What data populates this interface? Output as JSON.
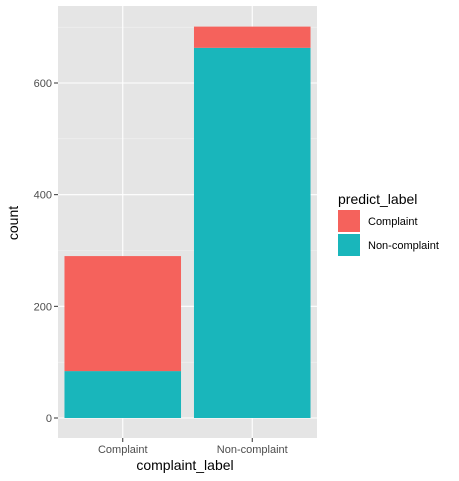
{
  "chart_data": {
    "type": "bar",
    "stacked": true,
    "categories": [
      "Complaint",
      "Non-complaint"
    ],
    "series": [
      {
        "name": "Non-complaint",
        "color": "#19B6BB",
        "values": [
          84,
          663
        ]
      },
      {
        "name": "Complaint",
        "color": "#F5625C",
        "values": [
          206,
          38
        ]
      }
    ],
    "xlabel": "complaint_label",
    "ylabel": "count",
    "ylim": [
      0,
      720
    ],
    "y_ticks": [
      0,
      200,
      400,
      600
    ],
    "grid": true,
    "panel_background": "#E5E5E5",
    "legend": {
      "title": "predict_label",
      "placement": "right",
      "entries": [
        {
          "label": "Complaint",
          "color": "#F5625C"
        },
        {
          "label": "Non-complaint",
          "color": "#19B6BB"
        }
      ]
    }
  }
}
